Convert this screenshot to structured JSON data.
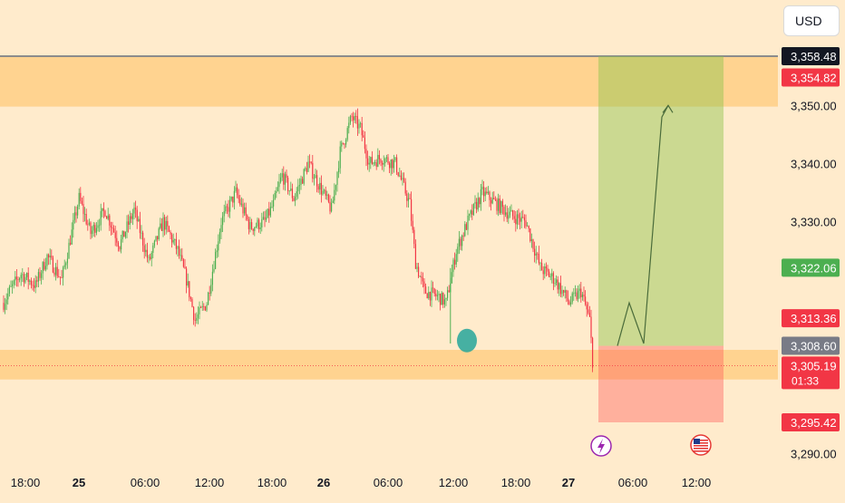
{
  "currency_label": "USD",
  "colors": {
    "background": "#FFEBCC",
    "zone": "#FFD28C",
    "bull": "#26A69A",
    "candle_up": "#4CAF50",
    "candle_down": "#F23645",
    "target": "#8BC34A",
    "stop": "#FF5252",
    "axis_text": "#131722"
  },
  "icons": [
    "lightning-icon",
    "us-flag-icon"
  ],
  "chart_data": {
    "type": "candlestick",
    "symbol_price_axis": {
      "ylim": [
        3286.0,
        3362.0
      ],
      "ticks": [
        "3,350.00",
        "3,340.00",
        "3,330.00",
        "3,290.00"
      ]
    },
    "x_ticks": [
      "18:00",
      "25",
      "06:00",
      "12:00",
      "18:00",
      "26",
      "06:00",
      "12:00",
      "18:00",
      "27",
      "06:00",
      "12:00"
    ],
    "price_labels": [
      {
        "text": "3,358.48",
        "value": 3358.48,
        "color": "#131722"
      },
      {
        "text": "3,354.82",
        "value": 3354.82,
        "color": "#F23645"
      },
      {
        "text": "3,322.06",
        "value": 3322.06,
        "color": "#4CAF50"
      },
      {
        "text": "3,313.36",
        "value": 3313.36,
        "color": "#F23645"
      },
      {
        "text": "3,308.60",
        "value": 3308.6,
        "color": "#787B86"
      },
      {
        "text": "3,305.19",
        "sub": "01:33",
        "value": 3305.19,
        "color": "#F23645"
      },
      {
        "text": "3,295.42",
        "value": 3295.42,
        "color": "#F23645"
      }
    ],
    "zones": [
      {
        "name": "resistance",
        "from": 3349.8,
        "to": 3358.48
      },
      {
        "name": "support",
        "from": 3302.8,
        "to": 3307.9
      }
    ],
    "position": {
      "entry": 3308.6,
      "target": 3358.48,
      "stop": 3295.42
    },
    "current_price": 3305.19,
    "keypoints": [
      [
        0,
        3316
      ],
      [
        4,
        3318
      ],
      [
        12,
        3321
      ],
      [
        22,
        3319
      ],
      [
        30,
        3324
      ],
      [
        40,
        3320
      ],
      [
        52,
        3334
      ],
      [
        60,
        3328
      ],
      [
        70,
        3332
      ],
      [
        80,
        3326
      ],
      [
        90,
        3332
      ],
      [
        100,
        3323
      ],
      [
        110,
        3330
      ],
      [
        120,
        3325
      ],
      [
        126,
        3320
      ],
      [
        132,
        3313
      ],
      [
        140,
        3316
      ],
      [
        150,
        3330
      ],
      [
        160,
        3335
      ],
      [
        170,
        3329
      ],
      [
        180,
        3330
      ],
      [
        186,
        3333
      ],
      [
        192,
        3338
      ],
      [
        200,
        3334
      ],
      [
        210,
        3340
      ],
      [
        218,
        3336
      ],
      [
        226,
        3332
      ],
      [
        232,
        3342
      ],
      [
        240,
        3348
      ],
      [
        246,
        3346
      ],
      [
        252,
        3340
      ],
      [
        260,
        3341
      ],
      [
        270,
        3340
      ],
      [
        280,
        3333
      ],
      [
        284,
        3323
      ],
      [
        290,
        3318
      ],
      [
        300,
        3317
      ],
      [
        305,
        3316
      ],
      [
        312,
        3325
      ],
      [
        320,
        3330
      ],
      [
        330,
        3335
      ],
      [
        340,
        3333
      ],
      [
        350,
        3331
      ],
      [
        360,
        3330
      ],
      [
        370,
        3322
      ],
      [
        380,
        3320
      ],
      [
        390,
        3316
      ],
      [
        398,
        3318
      ],
      [
        404,
        3313
      ],
      [
        406,
        3306
      ]
    ],
    "candle_count": 407,
    "x_range_index": [
      0,
      570
    ],
    "trade_projection": [
      [
        407,
        3308.6
      ],
      [
        418,
        3316.0
      ],
      [
        427,
        3309.0
      ],
      [
        438,
        3348.0
      ],
      [
        442,
        3350.0
      ]
    ],
    "marker": {
      "index": 308,
      "price": 3309.5
    }
  }
}
